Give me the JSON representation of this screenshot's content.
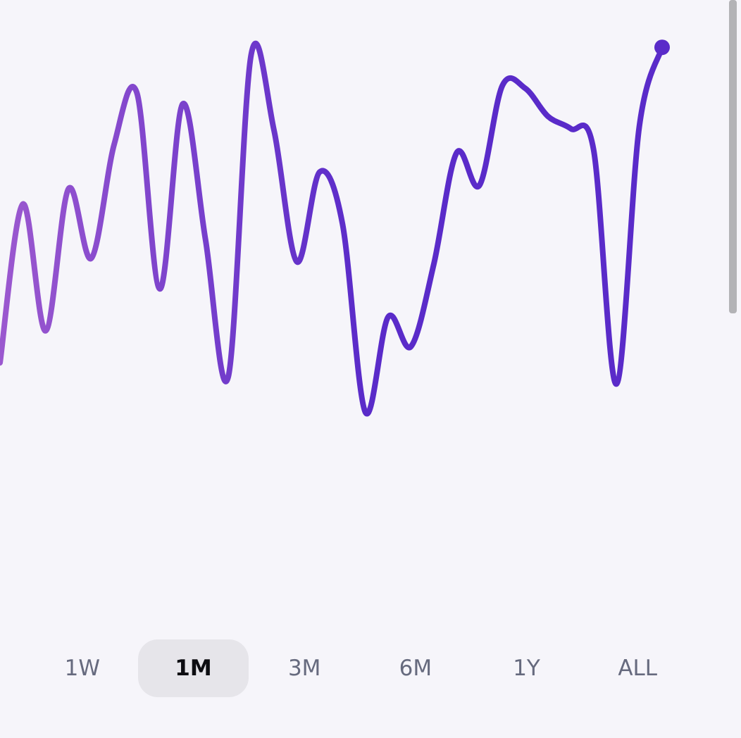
{
  "chart_data": {
    "type": "line",
    "categories": [
      null,
      null,
      null,
      null,
      null,
      null,
      null,
      null,
      null,
      null,
      null,
      null,
      null,
      null,
      null,
      null,
      null,
      null,
      null,
      null,
      null,
      null,
      null,
      null,
      null,
      null,
      null,
      null,
      null,
      null
    ],
    "values": [
      26.4,
      58.6,
      32.9,
      61.7,
      47.6,
      70.7,
      81.1,
      41.4,
      78.9,
      51.4,
      23.6,
      88.9,
      73.6,
      46.9,
      65.1,
      54.6,
      16.4,
      35.7,
      29.7,
      46.4,
      69,
      62.4,
      82.6,
      82.1,
      76.4,
      73.9,
      69.6,
      22.1,
      74.3,
      90.4
    ],
    "ylim": [
      0,
      100
    ],
    "gradient": [
      "#9b58cf",
      "#5a2bc9"
    ],
    "color": "#5a2bc9"
  },
  "periods": {
    "options": [
      "1W",
      "1M",
      "3M",
      "6M",
      "1Y",
      "ALL"
    ],
    "selected": 1
  }
}
